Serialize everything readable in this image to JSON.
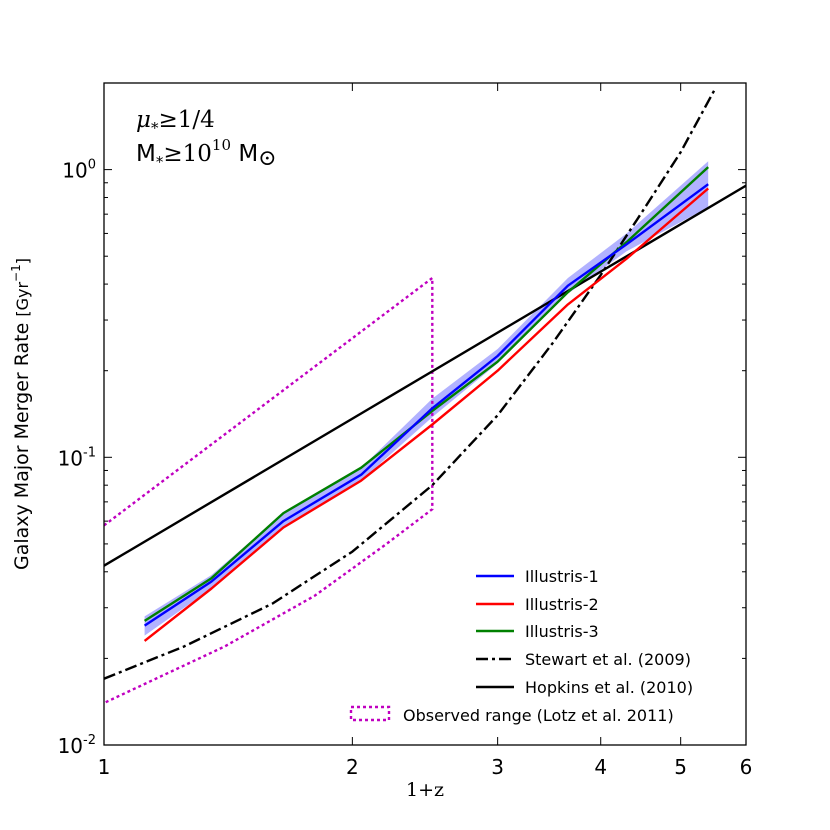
{
  "chart_data": {
    "type": "line",
    "title": "",
    "xlabel": "1+z",
    "ylabel": "Galaxy Major Merger Rate",
    "ylabel_unit": "[Gyr",
    "ylabel_unit_exp": "−1",
    "ylabel_unit_close": "]",
    "xscale": "log",
    "yscale": "log",
    "xlim": [
      1,
      6
    ],
    "ylim": [
      0.01,
      2.0
    ],
    "x_ticks": [
      {
        "value": 1,
        "label": "1"
      },
      {
        "value": 2,
        "label": "2"
      },
      {
        "value": 3,
        "label": "3"
      },
      {
        "value": 4,
        "label": "4"
      },
      {
        "value": 5,
        "label": "5"
      },
      {
        "value": 6,
        "label": "6"
      }
    ],
    "y_ticks": [
      {
        "value": 0.01,
        "base": "10",
        "exp": "-2"
      },
      {
        "value": 0.1,
        "base": "10",
        "exp": "-1"
      },
      {
        "value": 1,
        "base": "10",
        "exp": "0"
      }
    ],
    "annotation": {
      "line1_sym": "μ",
      "line1_sub": "*",
      "line1_rest": "≥1/4",
      "line2_sym": "M",
      "line2_sub": "*",
      "line2_rest": "≥10",
      "line2_exp": "10",
      "line2_unit": "M",
      "line2_sun": "⊙"
    },
    "series": [
      {
        "name": "Illustris-1",
        "color": "#0000ff",
        "style": "solid",
        "x": [
          1.12,
          1.35,
          1.65,
          2.05,
          2.5,
          3.0,
          3.65,
          4.3,
          5.4
        ],
        "y": [
          0.026,
          0.037,
          0.06,
          0.087,
          0.148,
          0.225,
          0.395,
          0.55,
          0.89
        ]
      },
      {
        "name": "Illustris-2",
        "color": "#ff0000",
        "style": "solid",
        "x": [
          1.12,
          1.35,
          1.65,
          2.05,
          2.5,
          3.0,
          3.65,
          4.3,
          5.4
        ],
        "y": [
          0.023,
          0.035,
          0.057,
          0.083,
          0.13,
          0.2,
          0.34,
          0.49,
          0.86
        ]
      },
      {
        "name": "Illustris-3",
        "color": "#008000",
        "style": "solid",
        "x": [
          1.12,
          1.35,
          1.65,
          2.05,
          2.5,
          3.0,
          3.65,
          4.3,
          5.4
        ],
        "y": [
          0.027,
          0.038,
          0.064,
          0.092,
          0.145,
          0.215,
          0.375,
          0.56,
          1.02
        ]
      },
      {
        "name": "Stewart et al. (2009)",
        "color": "#000000",
        "style": "dashdot",
        "x": [
          1.0,
          1.25,
          1.6,
          2.0,
          2.5,
          3.0,
          3.5,
          4.0,
          4.5,
          5.0,
          5.5
        ],
        "y": [
          0.017,
          0.022,
          0.031,
          0.047,
          0.08,
          0.14,
          0.25,
          0.43,
          0.72,
          1.15,
          1.9
        ]
      },
      {
        "name": "Hopkins et al. (2010)",
        "color": "#000000",
        "style": "solid",
        "x": [
          1.0,
          6.0
        ],
        "y": [
          0.042,
          0.88
        ]
      }
    ],
    "shaded_band": {
      "series": "Illustris-1",
      "color": "#0000ff",
      "x": [
        1.12,
        1.35,
        1.65,
        2.05,
        2.5,
        3.0,
        3.65,
        4.3,
        5.4
      ],
      "y_low": [
        0.024,
        0.035,
        0.057,
        0.083,
        0.138,
        0.212,
        0.37,
        0.52,
        0.74
      ],
      "y_high": [
        0.028,
        0.039,
        0.064,
        0.092,
        0.16,
        0.238,
        0.42,
        0.6,
        1.07
      ]
    },
    "observed_range": {
      "name": "Observed range (Lotz et al. 2011)",
      "color": "#c000c0",
      "style": "dotted",
      "upper": {
        "x": [
          1.0,
          2.5
        ],
        "y": [
          0.058,
          0.42
        ]
      },
      "lower": {
        "x": [
          1.0,
          1.4,
          1.8,
          2.2,
          2.5
        ],
        "y": [
          0.014,
          0.022,
          0.033,
          0.05,
          0.066
        ]
      }
    },
    "legend_position": "lower-right"
  }
}
